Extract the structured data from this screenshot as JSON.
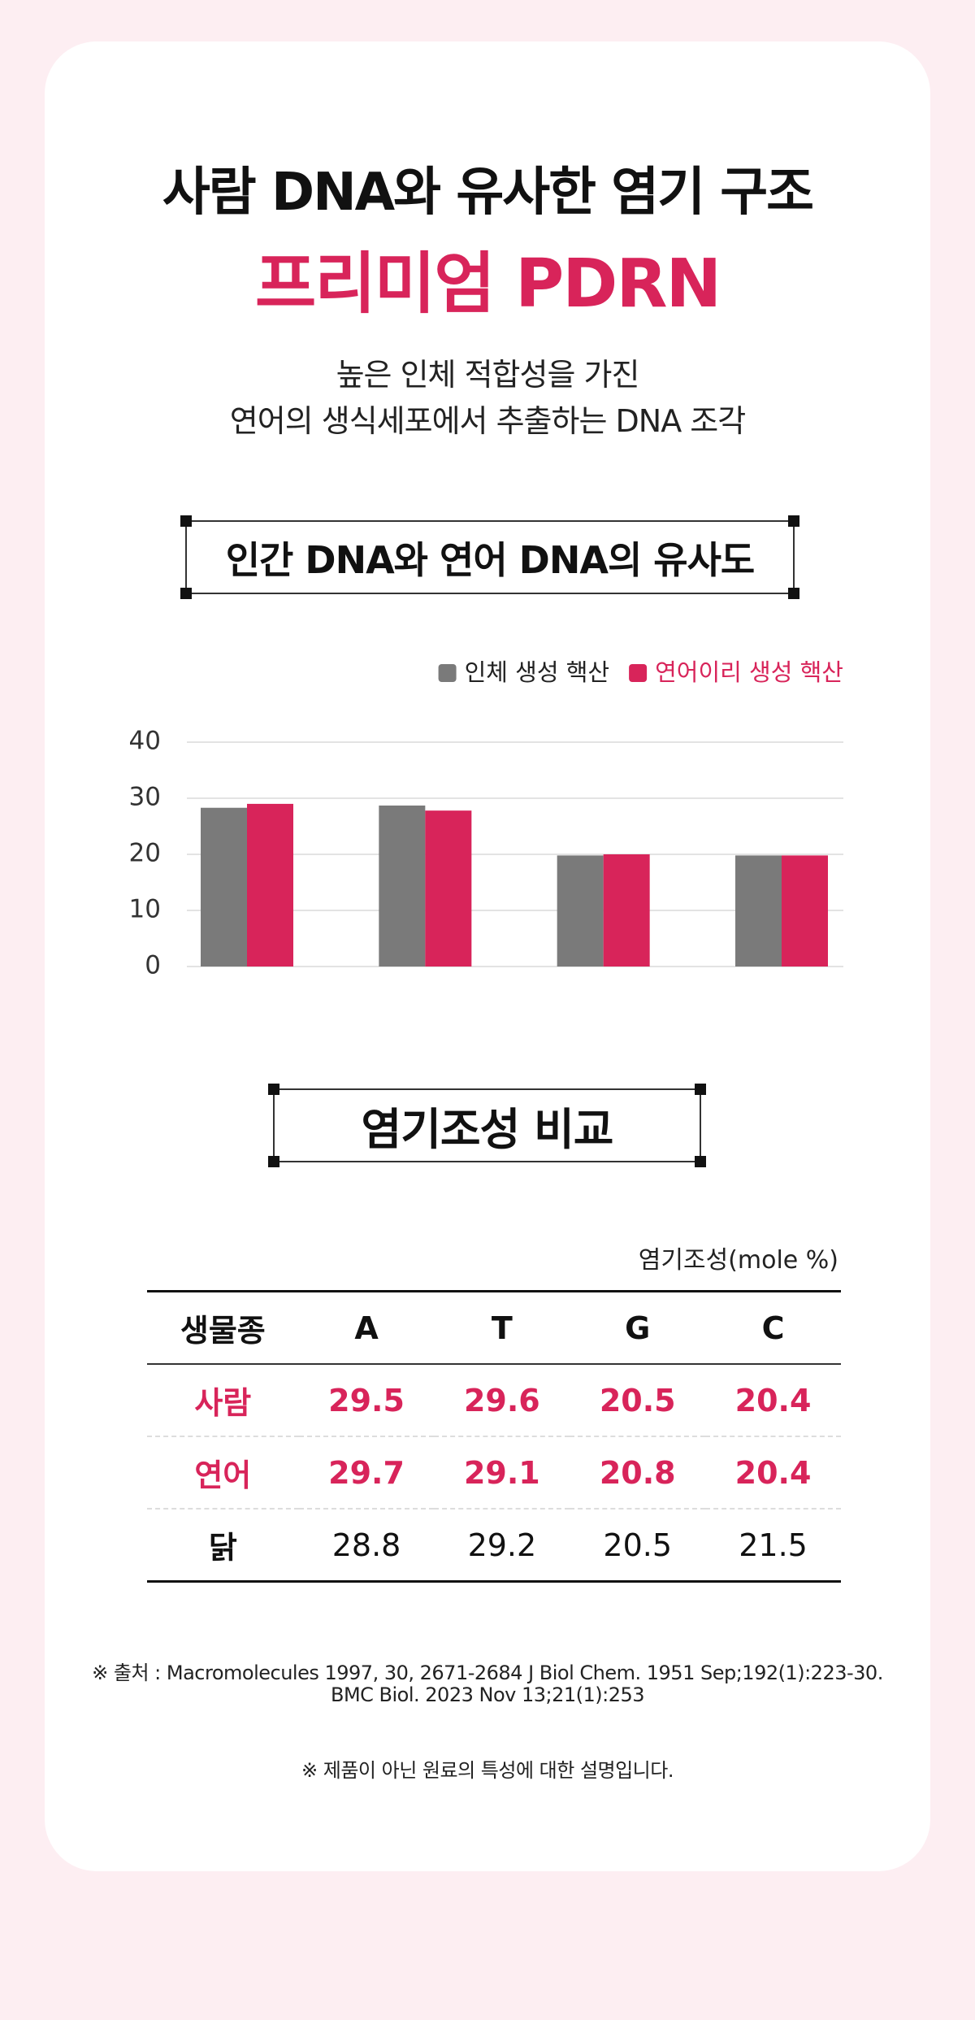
{
  "header": {
    "title": "사람 DNA와 유사한 염기 구조",
    "highlight": "프리미엄 PDRN",
    "subtitle_lines": [
      "높은 인체 적합성을 가진",
      "연어의 생식세포에서 추출하는 DNA 조각"
    ]
  },
  "chart_data": {
    "type": "bar",
    "title": "인간 DNA와 연어 DNA의 유사도",
    "categories": [
      null,
      null,
      null,
      null
    ],
    "series": [
      {
        "name": "인체 생성 핵산",
        "color": "#7a7a7a",
        "values": [
          28.3,
          28.7,
          19.8,
          19.8
        ]
      },
      {
        "name": "연어이리 생성 핵산",
        "color": "#d8245a",
        "values": [
          29.0,
          27.8,
          20.0,
          19.8
        ]
      }
    ],
    "ylim": [
      0,
      40
    ],
    "yticks": [
      0,
      10,
      20,
      30,
      40
    ],
    "grid": true,
    "legend": "top-right"
  },
  "table": {
    "title": "염기조성 비교",
    "unit": "염기조성(mole %)",
    "header": [
      "생물종",
      "A",
      "T",
      "G",
      "C"
    ],
    "rows": [
      [
        "사람",
        29.5,
        29.6,
        20.5,
        20.4
      ],
      [
        "연어",
        29.7,
        29.1,
        20.8,
        20.4
      ],
      [
        "닭",
        28.8,
        29.2,
        20.5,
        21.5
      ]
    ]
  },
  "footnotes": [
    "※ 출처 : Macromolecules 1997, 30, 2671-2684 J Biol Chem. 1951 Sep;192(1):223-30.",
    "BMC Biol. 2023 Nov 13;21(1):253",
    "※ 제품이 아닌 원료의 특성에 대한 설명입니다."
  ]
}
